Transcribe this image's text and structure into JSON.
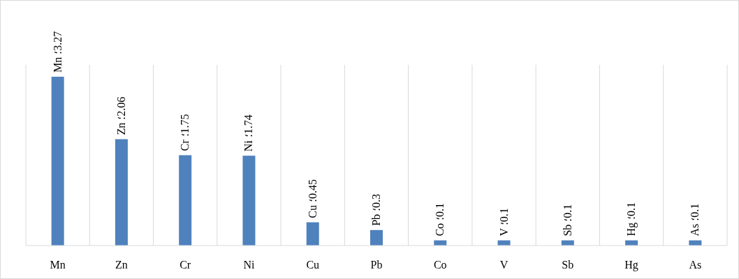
{
  "chart_data": {
    "type": "bar",
    "categories": [
      "Mn",
      "Zn",
      "Cr",
      "Ni",
      "Cu",
      "Pb",
      "Co",
      "V",
      "Sb",
      "Hg",
      "As"
    ],
    "values": [
      3.27,
      2.06,
      1.75,
      1.74,
      0.45,
      0.3,
      0.1,
      0.1,
      0.1,
      0.1,
      0.1
    ],
    "value_labels": [
      "Mn ؛3.27",
      "Zn ؛2.06",
      "Cr ؛1.75",
      "Ni ؛1.74",
      "Cu ؛0.45",
      "Pb ؛0.3",
      "Co ؛0.1",
      "V ؛0.1",
      "Sb ؛0.1",
      "Hg ؛0.1",
      "As ؛0.1"
    ],
    "color": "#4f81bd",
    "grid": "x"
  }
}
